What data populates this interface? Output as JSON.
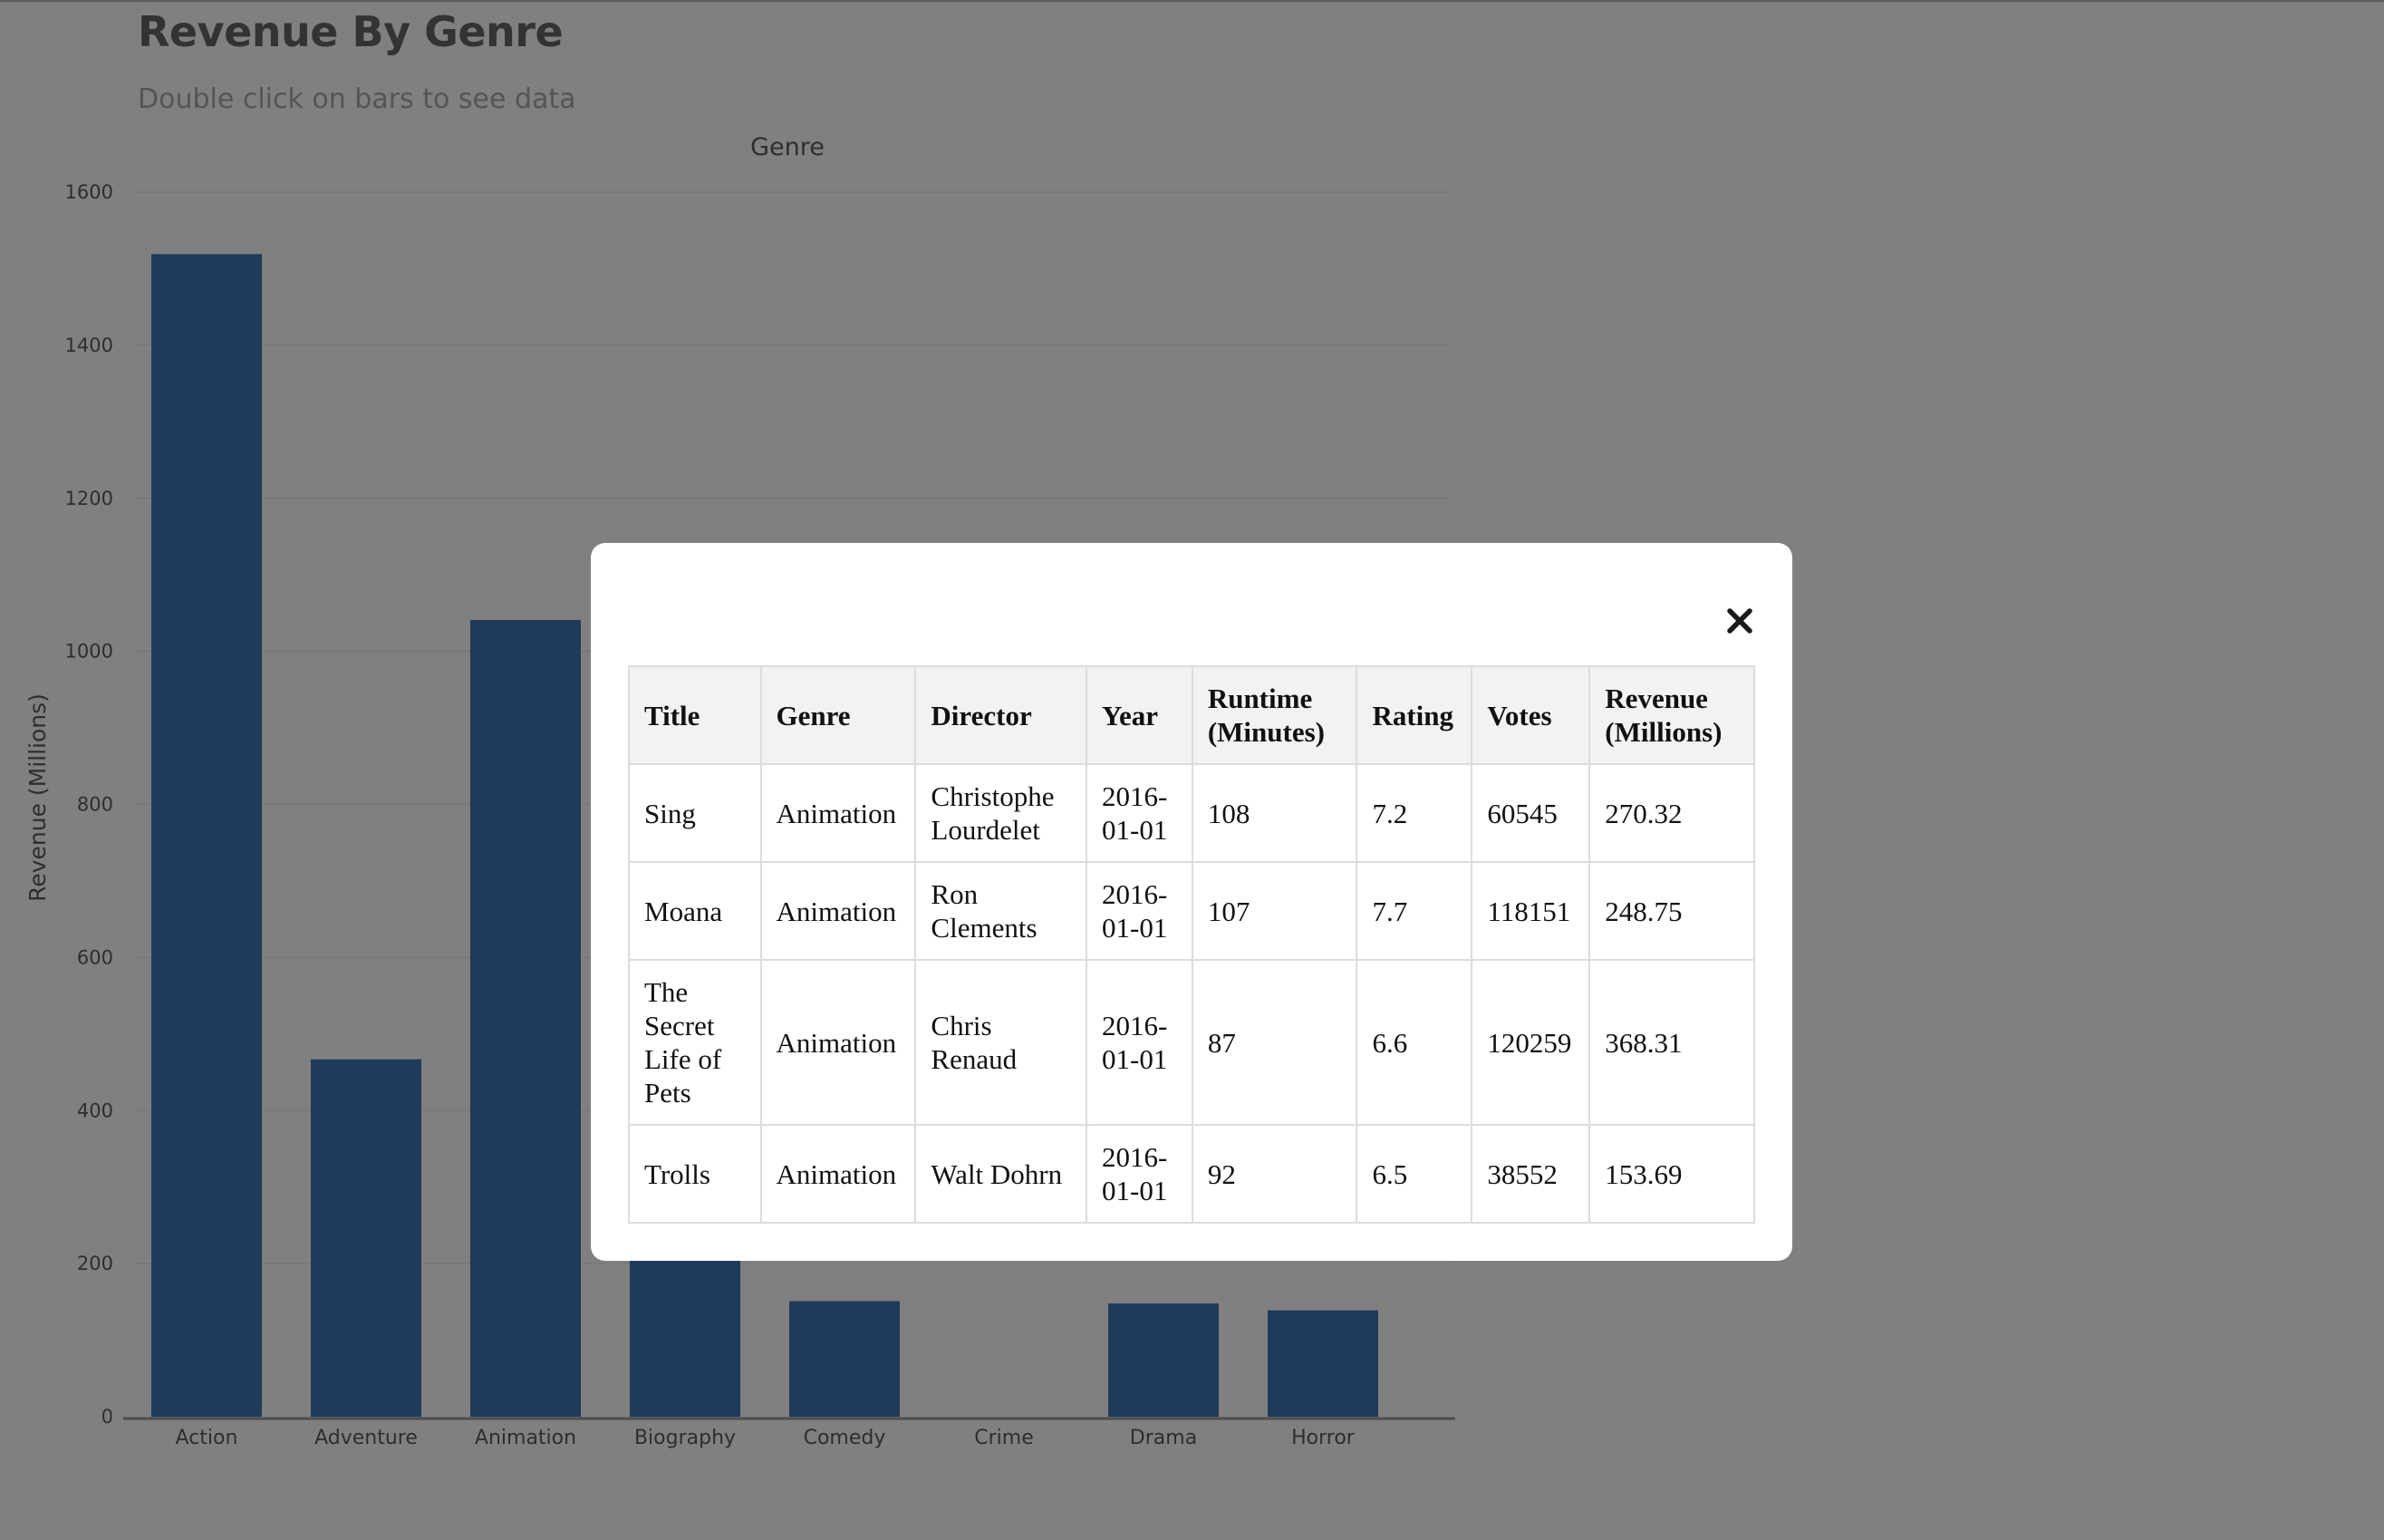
{
  "page": {
    "title": "Revenue By Genre",
    "subtitle": "Double click on bars to see data"
  },
  "colors": {
    "backdrop": "#808080",
    "bar": "#1f3a5a",
    "modal_background": "#ffffff",
    "table_header_background": "#f2f2f2"
  },
  "chart_data": {
    "type": "bar",
    "title": "Genre",
    "xlabel": "",
    "ylabel": "Revenue (Millions)",
    "categories": [
      "Action",
      "Adventure",
      "Animation",
      "Biography",
      "Comedy",
      "Crime",
      "Drama",
      "Horror"
    ],
    "values": [
      1519,
      467,
      1041,
      205,
      151,
      0,
      148,
      139
    ],
    "ylim": [
      0,
      1600
    ],
    "yticks": [
      0,
      200,
      400,
      600,
      800,
      1000,
      1200,
      1400,
      1600
    ],
    "grid": true,
    "bar_color": "#1f3a5a",
    "interaction_hint": "Double click on bars to see data"
  },
  "modal": {
    "close_icon": "close-icon",
    "close_glyph": "✕",
    "table": {
      "columns": [
        "Title",
        "Genre",
        "Director",
        "Year",
        "Runtime (Minutes)",
        "Rating",
        "Votes",
        "Revenue (Millions)"
      ],
      "rows": [
        [
          "Sing",
          "Animation",
          "Christophe Lourdelet",
          "2016-01-01",
          "108",
          "7.2",
          "60545",
          "270.32"
        ],
        [
          "Moana",
          "Animation",
          "Ron Clements",
          "2016-01-01",
          "107",
          "7.7",
          "118151",
          "248.75"
        ],
        [
          "The Secret Life of Pets",
          "Animation",
          "Chris Renaud",
          "2016-01-01",
          "87",
          "6.6",
          "120259",
          "368.31"
        ],
        [
          "Trolls",
          "Animation",
          "Walt Dohrn",
          "2016-01-01",
          "92",
          "6.5",
          "38552",
          "153.69"
        ]
      ]
    }
  }
}
